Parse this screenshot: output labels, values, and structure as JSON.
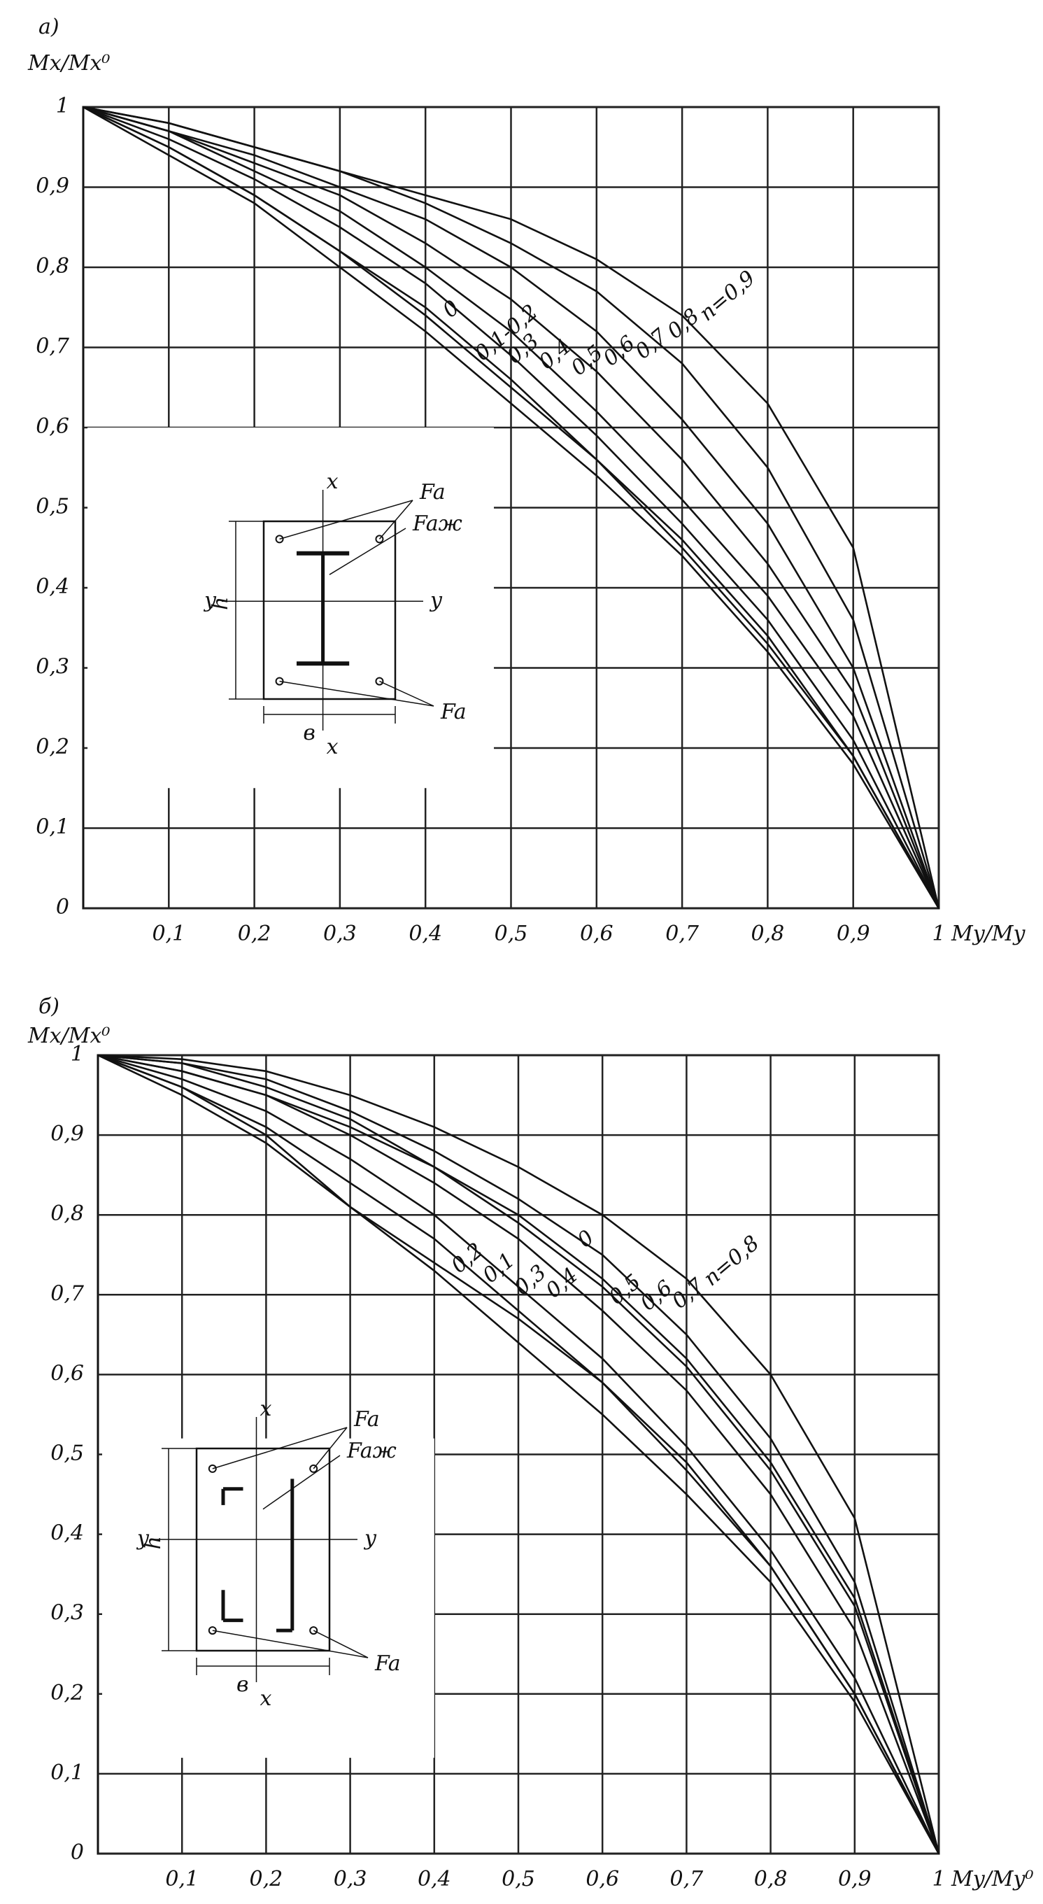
{
  "chart_data": [
    {
      "type": "line",
      "title": "a)",
      "ylabel": "Mx/Mx⁰",
      "xlabel": "My/My",
      "x": [
        0,
        0.1,
        0.2,
        0.3,
        0.4,
        0.5,
        0.6,
        0.7,
        0.8,
        0.9,
        1
      ],
      "xlim": [
        0,
        1
      ],
      "ylim": [
        0,
        1
      ],
      "grid": true,
      "color": "#111111",
      "xticks": [
        {
          "value": 0.1,
          "label": "0,1"
        },
        {
          "value": 0.2,
          "label": "0,2"
        },
        {
          "value": 0.3,
          "label": "0,3"
        },
        {
          "value": 0.4,
          "label": "0,4"
        },
        {
          "value": 0.5,
          "label": "0,5"
        },
        {
          "value": 0.6,
          "label": "0,6"
        },
        {
          "value": 0.7,
          "label": "0,7"
        },
        {
          "value": 0.8,
          "label": "0,8"
        },
        {
          "value": 0.9,
          "label": "0,9"
        },
        1
      ],
      "yticks": [
        0,
        {
          "value": 0.1,
          "label": "0,1"
        },
        {
          "value": 0.2,
          "label": "0,2"
        },
        {
          "value": 0.3,
          "label": "0,3"
        },
        {
          "value": 0.4,
          "label": "0,4"
        },
        {
          "value": 0.5,
          "label": "0,5"
        },
        {
          "value": 0.6,
          "label": "0,6"
        },
        {
          "value": 0.7,
          "label": "0,7"
        },
        {
          "value": 0.8,
          "label": "0,8"
        },
        {
          "value": 0.9,
          "label": "0,9"
        },
        1
      ],
      "series": [
        {
          "name": "0",
          "values": [
            1,
            0.95,
            0.89,
            0.82,
            0.74,
            0.65,
            0.56,
            0.45,
            0.33,
            0.19,
            0
          ]
        },
        {
          "name": "0,1-0,2",
          "values": [
            1,
            0.94,
            0.88,
            0.8,
            0.72,
            0.63,
            0.54,
            0.44,
            0.32,
            0.18,
            0
          ]
        },
        {
          "name": "0,3",
          "values": [
            1,
            0.95,
            0.89,
            0.82,
            0.75,
            0.66,
            0.56,
            0.46,
            0.34,
            0.19,
            0
          ]
        },
        {
          "name": "0,4",
          "values": [
            1,
            0.96,
            0.91,
            0.85,
            0.78,
            0.69,
            0.59,
            0.48,
            0.36,
            0.21,
            0
          ]
        },
        {
          "name": "0,5",
          "values": [
            1,
            0.97,
            0.92,
            0.87,
            0.8,
            0.72,
            0.62,
            0.51,
            0.39,
            0.24,
            0
          ]
        },
        {
          "name": "0,6",
          "values": [
            1,
            0.97,
            0.93,
            0.89,
            0.83,
            0.76,
            0.67,
            0.56,
            0.43,
            0.27,
            0
          ]
        },
        {
          "name": "0,7",
          "values": [
            1,
            0.97,
            0.94,
            0.9,
            0.86,
            0.8,
            0.72,
            0.61,
            0.48,
            0.3,
            0
          ]
        },
        {
          "name": "0,8",
          "values": [
            1,
            0.98,
            0.95,
            0.92,
            0.88,
            0.83,
            0.77,
            0.68,
            0.55,
            0.36,
            0
          ]
        },
        {
          "name": "n=0,9",
          "values": [
            1,
            0.98,
            0.95,
            0.92,
            0.89,
            0.86,
            0.81,
            0.74,
            0.63,
            0.45,
            0
          ]
        }
      ],
      "inset_labels": [
        "x",
        "Fa",
        "Faж",
        "y",
        "y",
        "h",
        "в",
        "x",
        "Fa"
      ]
    },
    {
      "type": "line",
      "title": "б)",
      "ylabel": "Mx/Mx⁰",
      "xlabel": "My/My⁰",
      "x": [
        0,
        0.1,
        0.2,
        0.3,
        0.4,
        0.5,
        0.6,
        0.7,
        0.8,
        0.9,
        1
      ],
      "xlim": [
        0,
        1
      ],
      "ylim": [
        0,
        1
      ],
      "grid": true,
      "color": "#111111",
      "xticks": [
        {
          "value": 0.1,
          "label": "0,1"
        },
        {
          "value": 0.2,
          "label": "0,2"
        },
        {
          "value": 0.3,
          "label": "0,3"
        },
        {
          "value": 0.4,
          "label": "0,4"
        },
        {
          "value": 0.5,
          "label": "0,5"
        },
        {
          "value": 0.6,
          "label": "0,6"
        },
        {
          "value": 0.7,
          "label": "0,7"
        },
        {
          "value": 0.8,
          "label": "0,8"
        },
        {
          "value": 0.9,
          "label": "0,9"
        },
        1
      ],
      "yticks": [
        0,
        {
          "value": 0.1,
          "label": "0,1"
        },
        {
          "value": 0.2,
          "label": "0,2"
        },
        {
          "value": 0.3,
          "label": "0,3"
        },
        {
          "value": 0.4,
          "label": "0,4"
        },
        {
          "value": 0.5,
          "label": "0,5"
        },
        {
          "value": 0.6,
          "label": "0,6"
        },
        {
          "value": 0.7,
          "label": "0,7"
        },
        {
          "value": 0.8,
          "label": "0,8"
        },
        {
          "value": 0.9,
          "label": "0,9"
        },
        1
      ],
      "series": [
        {
          "name": "0,2",
          "values": [
            1,
            0.95,
            0.89,
            0.81,
            0.73,
            0.64,
            0.55,
            0.45,
            0.34,
            0.19,
            0
          ]
        },
        {
          "name": "0,1",
          "values": [
            1,
            0.96,
            0.9,
            0.81,
            0.74,
            0.67,
            0.59,
            0.49,
            0.36,
            0.2,
            0
          ]
        },
        {
          "name": "0,3",
          "values": [
            1,
            0.96,
            0.91,
            0.84,
            0.77,
            0.68,
            0.59,
            0.48,
            0.36,
            0.2,
            0
          ]
        },
        {
          "name": "0,4",
          "values": [
            1,
            0.97,
            0.93,
            0.87,
            0.8,
            0.71,
            0.62,
            0.51,
            0.38,
            0.22,
            0
          ]
        },
        {
          "name": "0",
          "values": [
            1,
            0.98,
            0.95,
            0.91,
            0.86,
            0.8,
            0.72,
            0.62,
            0.49,
            0.32,
            0
          ]
        },
        {
          "name": "0,5",
          "values": [
            1,
            0.98,
            0.95,
            0.9,
            0.84,
            0.77,
            0.68,
            0.58,
            0.45,
            0.28,
            0
          ]
        },
        {
          "name": "0,6",
          "values": [
            1,
            0.99,
            0.96,
            0.92,
            0.86,
            0.79,
            0.71,
            0.61,
            0.48,
            0.31,
            0
          ]
        },
        {
          "name": "0,7",
          "values": [
            1,
            0.99,
            0.97,
            0.93,
            0.88,
            0.82,
            0.75,
            0.65,
            0.52,
            0.34,
            0
          ]
        },
        {
          "name": "n=0,8",
          "values": [
            1,
            0.995,
            0.98,
            0.95,
            0.91,
            0.86,
            0.8,
            0.72,
            0.6,
            0.42,
            0
          ]
        }
      ],
      "inset_labels": [
        "x",
        "Fa",
        "Faж",
        "y",
        "y",
        "h",
        "в",
        "x",
        "Fa"
      ]
    }
  ]
}
